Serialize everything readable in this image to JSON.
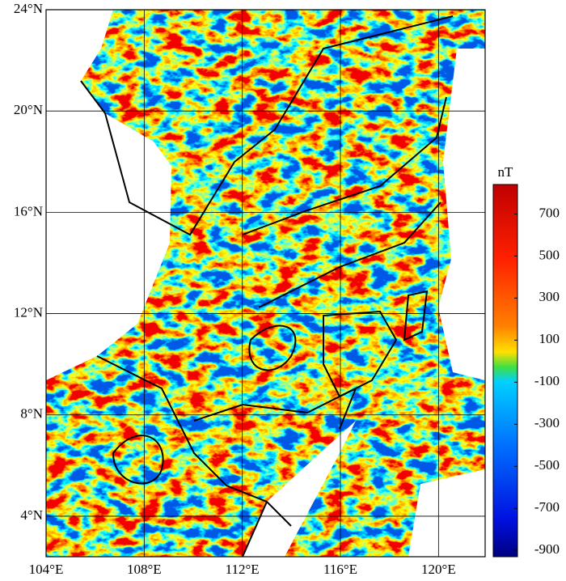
{
  "map": {
    "xlim": [
      104,
      121.9
    ],
    "ylim": [
      2.4,
      24
    ],
    "xticks": [
      {
        "value": 104,
        "label": "104°E"
      },
      {
        "value": 108,
        "label": "108°E"
      },
      {
        "value": 112,
        "label": "112°E"
      },
      {
        "value": 116,
        "label": "116°E"
      },
      {
        "value": 120,
        "label": "120°E"
      }
    ],
    "yticks": [
      {
        "value": 4,
        "label": "4°N"
      },
      {
        "value": 8,
        "label": "8°N"
      },
      {
        "value": 12,
        "label": "12°N"
      },
      {
        "value": 16,
        "label": "16°N"
      },
      {
        "value": 20,
        "label": "20°N"
      },
      {
        "value": 24,
        "label": "24°N"
      }
    ],
    "colorbar": {
      "unit": "nT",
      "lim": [
        -930,
        840
      ],
      "ticks": [
        700,
        500,
        300,
        100,
        -100,
        -300,
        -500,
        -700,
        -900
      ]
    }
  }
}
